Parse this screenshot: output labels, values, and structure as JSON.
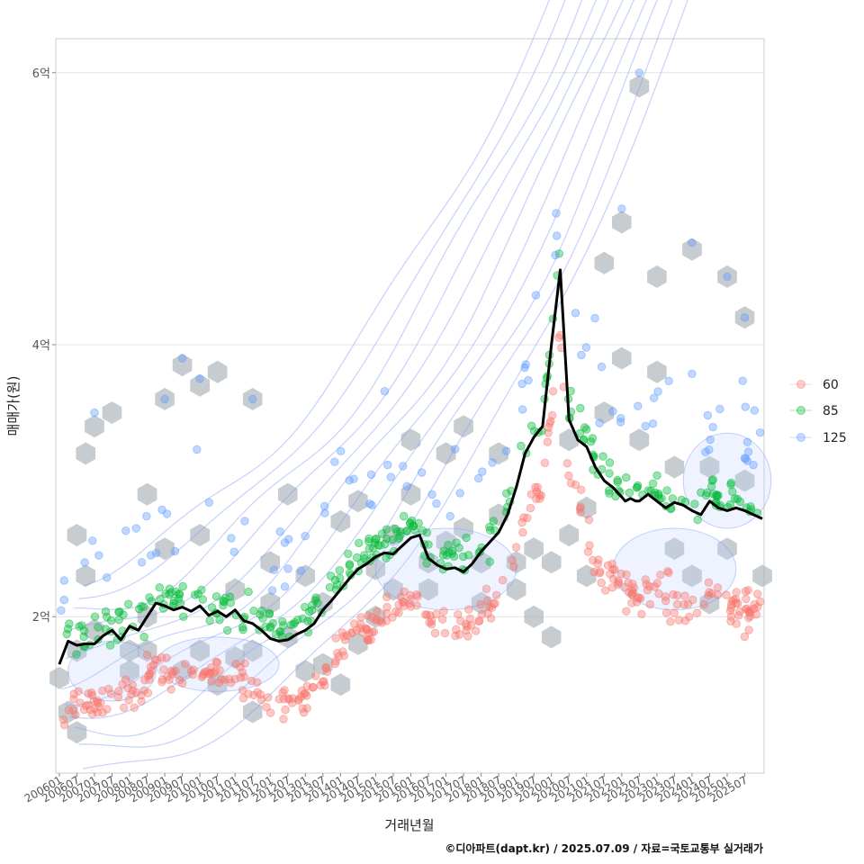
{
  "chart_data": {
    "type": "scatter",
    "xlabel": "거래년월",
    "ylabel": "매매가(원)",
    "caption": "©디아파트(dapt.kr) / 2025.07.09 / 자료=국토교통부 실거래가",
    "x_ticks": [
      "200601",
      "200607",
      "200701",
      "200707",
      "200801",
      "200807",
      "200901",
      "200907",
      "201001",
      "201007",
      "201101",
      "201107",
      "201201",
      "201207",
      "201301",
      "201307",
      "201401",
      "201407",
      "201501",
      "201507",
      "201601",
      "201607",
      "201701",
      "201707",
      "201801",
      "201807",
      "201901",
      "201907",
      "202001",
      "202007",
      "202101",
      "202107",
      "202201",
      "202207",
      "202301",
      "202307",
      "202401",
      "202407",
      "202501",
      "202507"
    ],
    "y_ticks": [
      {
        "value": 2,
        "label": "2억"
      },
      {
        "value": 4,
        "label": "4억"
      },
      {
        "value": 6,
        "label": "6억"
      }
    ],
    "ylim": [
      0.85,
      6.25
    ],
    "xlim": [
      -0.2,
      40.1
    ],
    "grid": "horizontal",
    "legend_position": "right",
    "series": [
      {
        "name": "60",
        "color": "#F8766D"
      },
      {
        "name": "85",
        "color": "#00BA38"
      },
      {
        "name": "125",
        "color": "#619CFF"
      }
    ],
    "median_line": {
      "color": "#000000",
      "x": [
        0,
        0.5,
        1,
        1.5,
        2,
        2.5,
        3,
        3.5,
        4,
        4.5,
        5,
        5.5,
        6,
        6.5,
        7,
        7.5,
        8,
        8.5,
        9,
        9.5,
        10,
        10.5,
        11,
        11.5,
        12,
        12.5,
        13,
        13.5,
        14,
        14.5,
        15,
        15.5,
        16,
        16.5,
        17,
        17.5,
        18,
        18.5,
        19,
        19.5,
        20,
        20.5,
        21,
        21.5,
        22,
        22.5,
        23,
        23.5,
        24,
        24.5,
        25,
        25.5,
        26,
        26.5,
        27,
        27.5,
        28,
        28.5,
        29,
        29.5,
        30,
        30.5,
        31,
        31.5,
        32,
        32.2,
        32.5,
        32.8,
        33,
        33.5,
        34,
        34.5,
        35,
        35.5,
        36,
        36.5,
        37,
        37.5,
        38,
        38.5,
        39,
        39.5,
        40
      ],
      "y": [
        1.65,
        1.82,
        1.79,
        1.8,
        1.8,
        1.86,
        1.9,
        1.83,
        1.93,
        1.9,
        2.0,
        2.1,
        2.08,
        2.05,
        2.07,
        2.04,
        2.08,
        2.01,
        2.04,
        2.0,
        2.05,
        1.97,
        1.95,
        1.9,
        1.84,
        1.82,
        1.83,
        1.87,
        1.9,
        1.95,
        2.05,
        2.12,
        2.2,
        2.28,
        2.35,
        2.39,
        2.44,
        2.47,
        2.46,
        2.52,
        2.58,
        2.6,
        2.43,
        2.38,
        2.35,
        2.36,
        2.33,
        2.39,
        2.48,
        2.55,
        2.62,
        2.75,
        2.95,
        3.2,
        3.32,
        3.4,
        4.0,
        4.55,
        3.45,
        3.3,
        3.25,
        3.1,
        3.0,
        2.95,
        2.88,
        2.85,
        2.87,
        2.85,
        2.85,
        2.9,
        2.85,
        2.8,
        2.84,
        2.82,
        2.78,
        2.75,
        2.85,
        2.8,
        2.78,
        2.8,
        2.78,
        2.75,
        2.72
      ]
    },
    "hex_centers": [
      [
        0,
        1.55
      ],
      [
        0.5,
        1.3
      ],
      [
        1,
        1.15
      ],
      [
        1,
        1.75
      ],
      [
        1.5,
        2.3
      ],
      [
        2,
        1.9
      ],
      [
        1,
        2.6
      ],
      [
        1.5,
        3.2
      ],
      [
        2,
        3.4
      ],
      [
        3,
        3.5
      ],
      [
        4,
        1.6
      ],
      [
        4,
        1.75
      ],
      [
        5,
        1.75
      ],
      [
        5,
        2.0
      ],
      [
        5,
        2.9
      ],
      [
        6,
        2.5
      ],
      [
        6,
        3.6
      ],
      [
        7,
        3.85
      ],
      [
        7,
        1.6
      ],
      [
        8,
        3.7
      ],
      [
        8,
        1.75
      ],
      [
        8,
        2.6
      ],
      [
        9,
        3.8
      ],
      [
        9,
        1.5
      ],
      [
        10,
        2.2
      ],
      [
        10,
        1.7
      ],
      [
        11,
        3.6
      ],
      [
        11,
        1.75
      ],
      [
        11,
        1.3
      ],
      [
        12,
        2.4
      ],
      [
        12,
        2.1
      ],
      [
        13,
        2.9
      ],
      [
        13,
        1.85
      ],
      [
        14,
        1.6
      ],
      [
        14,
        2.3
      ],
      [
        15,
        1.65
      ],
      [
        15,
        2.1
      ],
      [
        16,
        2.7
      ],
      [
        16,
        1.5
      ],
      [
        17,
        2.85
      ],
      [
        17,
        1.8
      ],
      [
        18,
        2.0
      ],
      [
        18,
        2.35
      ],
      [
        19,
        2.2
      ],
      [
        19,
        2.6
      ],
      [
        20,
        3.3
      ],
      [
        20,
        2.9
      ],
      [
        21,
        2.4
      ],
      [
        21,
        2.2
      ],
      [
        22,
        2.55
      ],
      [
        22,
        3.2
      ],
      [
        23,
        2.65
      ],
      [
        23,
        3.4
      ],
      [
        24,
        2.4
      ],
      [
        24,
        2.1
      ],
      [
        25,
        2.75
      ],
      [
        25,
        3.2
      ],
      [
        26,
        2.4
      ],
      [
        26,
        2.2
      ],
      [
        27,
        2.5
      ],
      [
        27,
        2.0
      ],
      [
        28,
        2.4
      ],
      [
        28,
        1.85
      ],
      [
        29,
        2.6
      ],
      [
        29,
        3.3
      ],
      [
        30,
        2.8
      ],
      [
        30,
        2.3
      ],
      [
        31,
        3.5
      ],
      [
        31,
        4.6
      ],
      [
        32,
        4.9
      ],
      [
        32,
        3.9
      ],
      [
        33,
        5.9
      ],
      [
        33,
        3.3
      ],
      [
        34,
        4.5
      ],
      [
        34,
        3.8
      ],
      [
        35,
        2.5
      ],
      [
        35,
        3.1
      ],
      [
        36,
        4.7
      ],
      [
        36,
        2.3
      ],
      [
        37,
        3.1
      ],
      [
        37,
        2.1
      ],
      [
        38,
        4.5
      ],
      [
        38,
        2.5
      ],
      [
        39,
        4.2
      ],
      [
        39,
        3.0
      ],
      [
        40,
        2.3
      ]
    ],
    "contour_levels": 11,
    "point_seed": 20250709
  }
}
